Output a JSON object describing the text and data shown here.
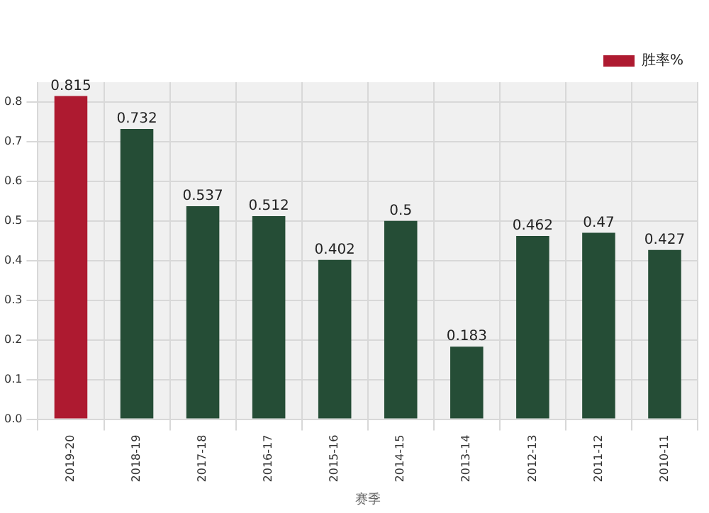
{
  "chart_data": {
    "type": "bar",
    "xlabel": "赛季",
    "categories": [
      "2019-20",
      "2018-19",
      "2017-18",
      "2016-17",
      "2015-16",
      "2014-15",
      "2013-14",
      "2012-13",
      "2011-12",
      "2010-11"
    ],
    "series": [
      {
        "name": "胜率%",
        "color": "#ae1a30",
        "colors": [
          "#ae1a30",
          "#254d36",
          "#254d36",
          "#254d36",
          "#254d36",
          "#254d36",
          "#254d36",
          "#254d36",
          "#254d36",
          "#254d36"
        ],
        "values": [
          0.815,
          0.732,
          0.537,
          0.512,
          0.402,
          0.5,
          0.183,
          0.462,
          0.47,
          0.427
        ]
      }
    ],
    "ylim": [
      0,
      0.85
    ],
    "yticks": [
      {
        "value": 0,
        "label": "0.0"
      },
      {
        "value": 0.1,
        "label": "0.1"
      },
      {
        "value": 0.2,
        "label": "0.2"
      },
      {
        "value": 0.3,
        "label": "0.3"
      },
      {
        "value": 0.4,
        "label": "0.4"
      },
      {
        "value": 0.5,
        "label": "0.5"
      },
      {
        "value": 0.6,
        "label": "0.6"
      },
      {
        "value": 0.7,
        "label": "0.7"
      },
      {
        "value": 0.8,
        "label": "0.8"
      }
    ],
    "grid": true,
    "legend": "top right",
    "data_labels": true
  }
}
